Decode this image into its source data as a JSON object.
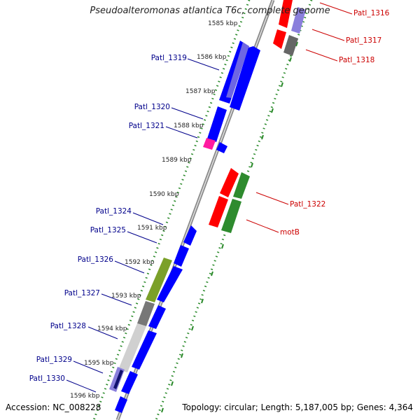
{
  "title": "Pseudoalteromonas atlantica T6c, complete genome",
  "accession": "Accession: NC_008228",
  "topology": "Topology: circular; Length: 5,187,005 bp; Genes: 4,364",
  "colors": {
    "label_left": "#00008b",
    "label_right": "#cc0000",
    "blue": "#0000ff",
    "light_purple": "#8a7fdc",
    "red": "#ff0000",
    "green": "#2e8b2e",
    "olive": "#7ba029",
    "gray": "#777777",
    "light_gray": "#d0d0d0",
    "magenta": "#ff1aa0",
    "dark_navy": "#11116e",
    "ruler_green": "#2a8a2a"
  },
  "ruler": {
    "labels": [
      "1585 kbp",
      "1586 kbp",
      "1587 kbp",
      "1588 kbp",
      "1589 kbp",
      "1590 kbp",
      "1591 kbp",
      "1592 kbp",
      "1593 kbp",
      "1594 kbp",
      "1595 kbp",
      "1596 kbp"
    ]
  },
  "left_genes": [
    "Patl_1319",
    "Patl_1320",
    "Patl_1321",
    "Patl_1324",
    "Patl_1325",
    "Patl_1326",
    "Patl_1327",
    "Patl_1328",
    "Patl_1329",
    "Patl_1330"
  ],
  "right_genes": [
    "Patl_1316",
    "Patl_1317",
    "Patl_1318",
    "Patl_1322",
    "motB"
  ]
}
